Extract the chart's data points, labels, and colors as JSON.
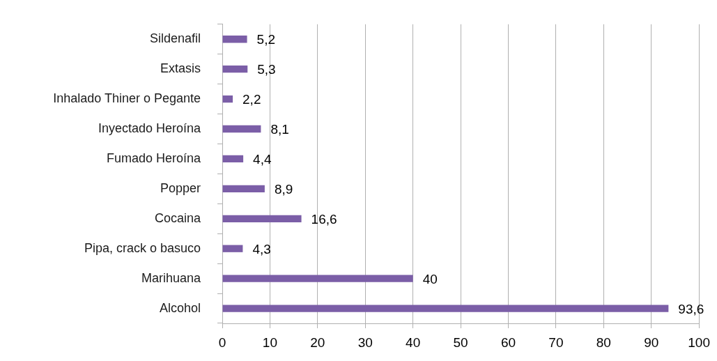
{
  "chart_data": {
    "type": "bar",
    "orientation": "horizontal",
    "categories": [
      "Sildenafil",
      "Extasis",
      "Inhalado Thiner o Pegante",
      "Inyectado Heroína",
      "Fumado Heroína",
      "Popper",
      "Cocaina",
      "Pipa, crack o basuco",
      "Marihuana",
      "Alcohol"
    ],
    "values": [
      5.2,
      5.3,
      2.2,
      8.1,
      4.4,
      8.9,
      16.6,
      4.3,
      40,
      93.6
    ],
    "value_labels": [
      "5,2",
      "5,3",
      "2,2",
      "8,1",
      "4,4",
      "8,9",
      "16,6",
      "4,3",
      "40",
      "93,6"
    ],
    "color": "#7b5ea7",
    "xlim": [
      0,
      100
    ],
    "xticks": [
      0,
      10,
      20,
      30,
      40,
      50,
      60,
      70,
      80,
      90,
      100
    ],
    "grid": "x"
  }
}
